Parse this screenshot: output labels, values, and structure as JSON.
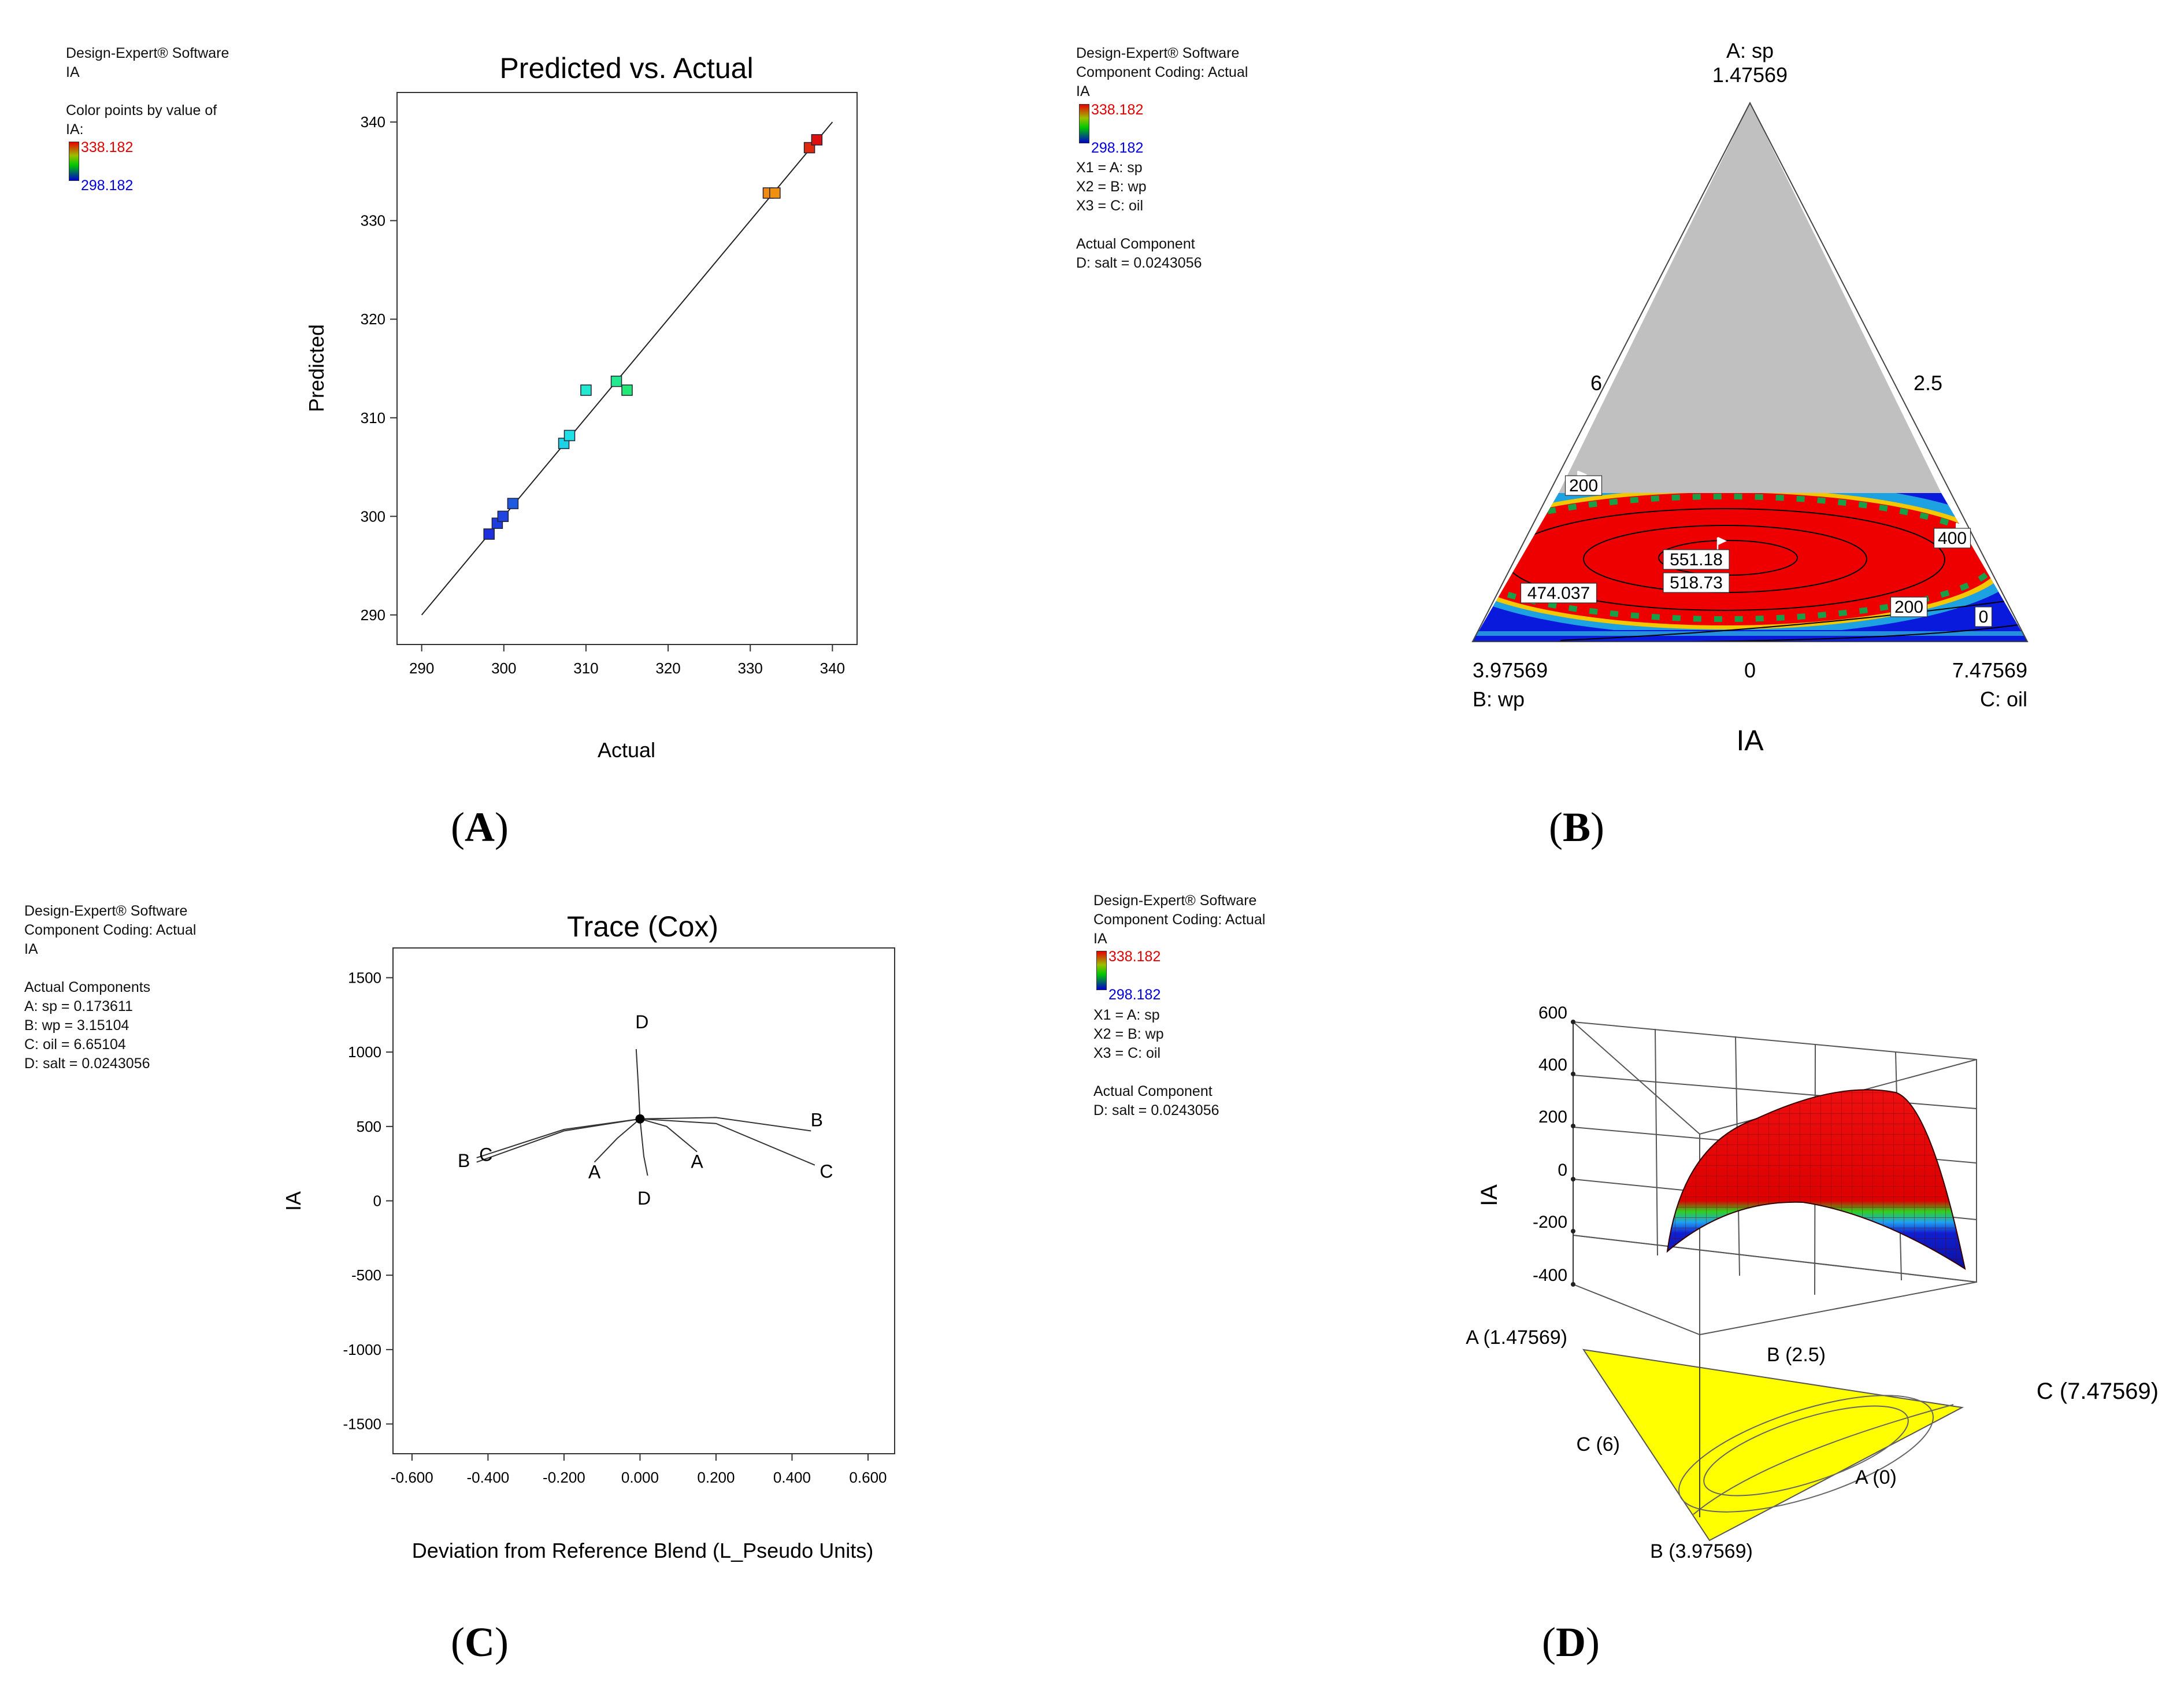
{
  "panelA": {
    "info": {
      "line1": "Design-Expert® Software",
      "line2": "IA",
      "line3": "Color points by value of",
      "line4": "IA:"
    },
    "legend": {
      "high": "338.182",
      "low": "298.182"
    },
    "caption": "A"
  },
  "panelB": {
    "info": {
      "line1": "Design-Expert® Software",
      "line2": "Component Coding: Actual",
      "line3": "IA",
      "x1": "X1 = A: sp",
      "x2": "X2 = B: wp",
      "x3": "X3 = C: oil",
      "actual_title": "Actual Component",
      "salt": "D: salt = 0.0243056"
    },
    "legend": {
      "high": "338.182",
      "low": "298.182"
    },
    "caption": "B"
  },
  "panelC": {
    "info": {
      "line1": "Design-Expert® Software",
      "line2": "Component Coding: Actual",
      "line3": "IA",
      "actual_title": "Actual Components",
      "a": "A: sp = 0.173611",
      "b": "B: wp = 3.15104",
      "c": "C: oil = 6.65104",
      "d": "D: salt = 0.0243056"
    },
    "caption": "C"
  },
  "panelD": {
    "info": {
      "line1": "Design-Expert® Software",
      "line2": "Component Coding: Actual",
      "line3": "IA",
      "x1": "X1 = A: sp",
      "x2": "X2 = B: wp",
      "x3": "X3 = C: oil",
      "actual_title": "Actual Component",
      "salt": "D: salt = 0.0243056"
    },
    "legend": {
      "high": "338.182",
      "low": "298.182"
    },
    "caption": "D"
  },
  "colors": {
    "red": "#ee0000",
    "blue": "#0000dd",
    "gray": "#c0c0c0",
    "yellow": "#ffff00"
  },
  "chart_data": [
    {
      "type": "scatter",
      "title": "Predicted vs. Actual",
      "xlabel": "Actual",
      "ylabel": "Predicted",
      "xlim": [
        287,
        343
      ],
      "ylim": [
        287,
        343
      ],
      "xticks": [
        "290",
        "300",
        "310",
        "320",
        "330",
        "340"
      ],
      "yticks": [
        "290",
        "300",
        "310",
        "320",
        "330",
        "340"
      ],
      "reference_line": [
        [
          290,
          290
        ],
        [
          340,
          340
        ]
      ],
      "points": [
        {
          "x": 298.2,
          "y": 298.2,
          "color": "#1e2fdc"
        },
        {
          "x": 299.2,
          "y": 299.3,
          "color": "#1e3de0"
        },
        {
          "x": 299.9,
          "y": 300.0,
          "color": "#1e45e0"
        },
        {
          "x": 301.1,
          "y": 301.3,
          "color": "#1d5ae0"
        },
        {
          "x": 307.3,
          "y": 307.4,
          "color": "#1ed2e6"
        },
        {
          "x": 308.0,
          "y": 308.2,
          "color": "#1ee0e6"
        },
        {
          "x": 310.0,
          "y": 312.8,
          "color": "#22e8d0"
        },
        {
          "x": 313.7,
          "y": 313.7,
          "color": "#22e890"
        },
        {
          "x": 315.0,
          "y": 312.8,
          "color": "#22e878"
        },
        {
          "x": 332.2,
          "y": 332.8,
          "color": "#f08a10"
        },
        {
          "x": 333.0,
          "y": 332.8,
          "color": "#f09010"
        },
        {
          "x": 337.2,
          "y": 337.4,
          "color": "#e02a10"
        },
        {
          "x": 338.1,
          "y": 338.2,
          "color": "#dd1010"
        }
      ]
    },
    {
      "type": "ternary-contour",
      "title": "IA",
      "vertex_top": {
        "name": "A: sp",
        "value": "1.47569"
      },
      "vertex_left": {
        "name": "B: wp",
        "value": "3.97569"
      },
      "vertex_right": {
        "name": "C: oil",
        "value": "7.47569"
      },
      "edge_labels": {
        "left": "6",
        "right": "2.5",
        "bottom": "0"
      },
      "contour_labels": [
        "551.18",
        "518.73",
        "474.037",
        "400",
        "200",
        "200",
        "0"
      ]
    },
    {
      "type": "line",
      "title": "Trace (Cox)",
      "xlabel": "Deviation from Reference Blend (L_Pseudo Units)",
      "ylabel": "IA",
      "xlim": [
        -0.65,
        0.67
      ],
      "ylim": [
        -1700,
        1700
      ],
      "xticks": [
        "-0.600",
        "-0.400",
        "-0.200",
        "0.000",
        "0.200",
        "0.400",
        "0.600"
      ],
      "yticks": [
        "1500",
        "1000",
        "500",
        "0",
        "-500",
        "-1000",
        "-1500"
      ],
      "reference_point": {
        "x": 0.0,
        "y": 551
      },
      "series": [
        {
          "name": "A",
          "x": [
            -0.12,
            -0.06,
            0.0,
            0.07,
            0.15
          ],
          "y": [
            260,
            420,
            551,
            500,
            330
          ],
          "end_labels": [
            "A",
            "A"
          ]
        },
        {
          "name": "B",
          "x": [
            -0.43,
            -0.2,
            0.0,
            0.2,
            0.45
          ],
          "y": [
            290,
            480,
            551,
            560,
            470
          ],
          "end_labels": [
            "B",
            "B"
          ]
        },
        {
          "name": "C",
          "x": [
            -0.43,
            -0.2,
            0.0,
            0.2,
            0.46
          ],
          "y": [
            260,
            470,
            551,
            520,
            240
          ],
          "end_labels": [
            "C",
            "C"
          ]
        },
        {
          "name": "D",
          "x": [
            -0.01,
            -0.005,
            0.0,
            0.01,
            0.02
          ],
          "y": [
            1020,
            800,
            551,
            300,
            170
          ],
          "end_labels": [
            "D",
            "D"
          ]
        }
      ]
    },
    {
      "type": "3d-surface",
      "zlabel": "IA",
      "zticks": [
        "600",
        "400",
        "200",
        "0",
        "-200",
        "-400"
      ],
      "base_labels": [
        "A (1.47569)",
        "B (2.5)",
        "C (7.47569)",
        "C (6)",
        "A (0)",
        "B (3.97569)"
      ]
    }
  ]
}
